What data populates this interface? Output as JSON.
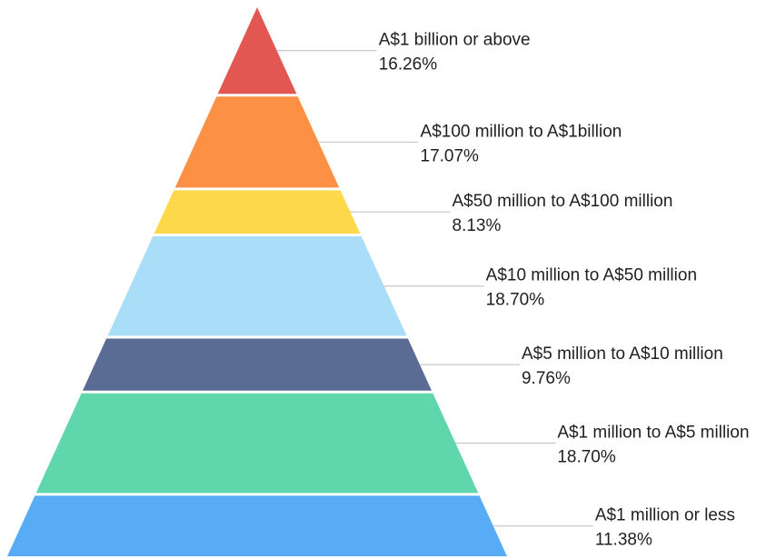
{
  "chart_data": {
    "type": "pyramid",
    "title": "",
    "categories": [
      "A$1 billion or above",
      "A$100 million to A$1billion",
      "A$50 million to A$100 million",
      "A$10 million to A$50 million",
      "A$5 million to A$10 million",
      "A$1 million to A$5 million",
      "A$1 million or less"
    ],
    "values": [
      16.26,
      17.07,
      8.13,
      18.7,
      9.76,
      18.7,
      11.38
    ],
    "value_labels": [
      "16.26%",
      "17.07%",
      "8.13%",
      "18.70%",
      "9.76%",
      "18.70%",
      "11.38%"
    ],
    "colors": [
      "#e35753",
      "#fc9145",
      "#fdd84b",
      "#a9ddf8",
      "#5a6b94",
      "#5fd6ab",
      "#58acf5"
    ],
    "legend": "none",
    "grid": false
  }
}
